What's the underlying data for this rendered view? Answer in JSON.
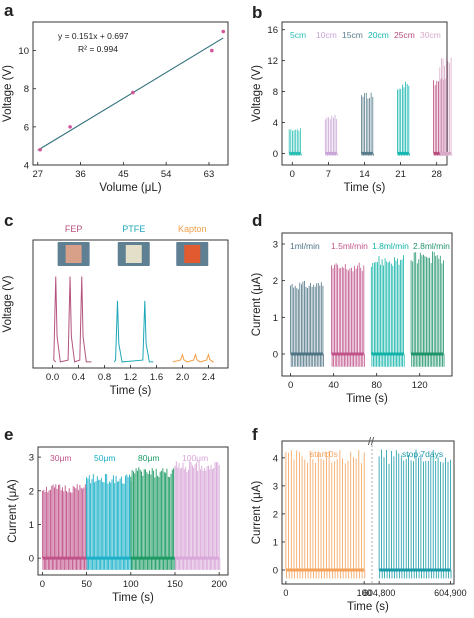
{
  "chart_data": [
    {
      "panel": "a",
      "type": "scatter",
      "xlabel": "Volume (μL)",
      "ylabel": "Voltage (V)",
      "xlim": [
        26,
        67
      ],
      "ylim": [
        4,
        11.5
      ],
      "xticks": [
        27,
        36,
        45,
        54,
        63
      ],
      "yticks": [
        4,
        6,
        8,
        10
      ],
      "x": [
        27.5,
        33.8,
        47,
        63.6,
        66
      ],
      "y": [
        4.8,
        6.0,
        7.8,
        10.0,
        11.0
      ],
      "fit": {
        "slope": 0.151,
        "intercept": 0.697
      },
      "annotation": [
        "y = 0.151x + 0.697",
        "R² = 0.994"
      ]
    },
    {
      "panel": "b",
      "type": "line",
      "xlabel": "Time (s)",
      "ylabel": "Voltage (V)",
      "xlim": [
        -2,
        30
      ],
      "ylim": [
        -1.5,
        17
      ],
      "xticks": [
        0,
        7,
        14,
        21,
        28
      ],
      "yticks": [
        0,
        4,
        8,
        12,
        16
      ],
      "series": [
        {
          "name": "5cm",
          "color": "#2bbfb3",
          "x0": 0.0,
          "x1": 1.8,
          "peak": 3.3
        },
        {
          "name": "10cm",
          "color": "#c9a6d6",
          "x0": 6.4,
          "x1": 8.6,
          "peak": 5.0
        },
        {
          "name": "15cm",
          "color": "#5a7d8c",
          "x0": 12.8,
          "x1": 15.0,
          "peak": 8.0
        },
        {
          "name": "20cm",
          "color": "#16b8b0",
          "x0": 19.2,
          "x1": 21.5,
          "peak": 9.3
        },
        {
          "name": "25cm",
          "color": "#b84d7e",
          "x0": 25.6,
          "x1": 27.7,
          "peak": 10.0
        },
        {
          "name": "30cm",
          "color": "#d9aac9",
          "x0": 32.0,
          "x1": 34.2,
          "peak": 12.5
        }
      ]
    },
    {
      "panel": "c",
      "type": "line",
      "xlabel": "Time (s)",
      "ylabel": "Voltage (V)",
      "xlim": [
        -0.3,
        2.7
      ],
      "ylim": [
        -1,
        20
      ],
      "xticks": [
        0.0,
        0.4,
        0.8,
        1.2,
        1.6,
        2.0,
        2.4
      ],
      "series": [
        {
          "name": "FEP",
          "color": "#b4537f",
          "x0": 0.05,
          "x1": 0.6,
          "peaks": [
            0.05,
            0.27,
            0.45
          ],
          "peak": 14
        },
        {
          "name": "PTFE",
          "color": "#1da7b8",
          "x0": 0.95,
          "x1": 1.55,
          "peaks": [
            1.0,
            1.42
          ],
          "peak": 10
        },
        {
          "name": "Kapton",
          "color": "#f2a04a",
          "x0": 1.85,
          "x1": 2.45,
          "peaks": [
            2.0,
            2.2,
            2.4
          ],
          "peak": 1.2
        }
      ]
    },
    {
      "panel": "d",
      "type": "line",
      "xlabel": "Time (s)",
      "ylabel": "Current (μA)",
      "xlim": [
        -8,
        150
      ],
      "ylim": [
        -0.6,
        3.3
      ],
      "xticks": [
        0,
        40,
        80,
        120
      ],
      "yticks": [
        0,
        1,
        2,
        3
      ],
      "series": [
        {
          "name": "1ml/min",
          "color": "#4f7485",
          "x0": 0,
          "x1": 30,
          "peak": 2.0
        },
        {
          "name": "1.5ml/min",
          "color": "#c0548a",
          "x0": 38,
          "x1": 68,
          "peak": 2.5
        },
        {
          "name": "1.8ml/min",
          "color": "#10b3a8",
          "x0": 75,
          "x1": 105,
          "peak": 2.7
        },
        {
          "name": "2.8ml/min",
          "color": "#21946c",
          "x0": 112,
          "x1": 142,
          "peak": 2.8
        }
      ]
    },
    {
      "panel": "e",
      "type": "line",
      "xlabel": "Time (s)",
      "ylabel": "Current (μA)",
      "xlim": [
        -5,
        210
      ],
      "ylim": [
        -0.5,
        3.3
      ],
      "xticks": [
        0,
        50,
        100,
        150,
        200
      ],
      "yticks": [
        0,
        1,
        2,
        3
      ],
      "series": [
        {
          "name": "30μm",
          "color": "#c0548a",
          "x0": 0,
          "x1": 50,
          "peak": 2.2
        },
        {
          "name": "50μm",
          "color": "#1bb0c8",
          "x0": 50,
          "x1": 100,
          "peak": 2.5
        },
        {
          "name": "80μm",
          "color": "#1e9a64",
          "x0": 100,
          "x1": 150,
          "peak": 2.7
        },
        {
          "name": "100μm",
          "color": "#d9a7d9",
          "x0": 150,
          "x1": 200,
          "peak": 2.9
        }
      ]
    },
    {
      "panel": "f",
      "type": "line",
      "xlabel": "Time (s)",
      "ylabel": "Current (μA)",
      "ylim": [
        -0.5,
        4.6
      ],
      "yticks": [
        0,
        1,
        2,
        3,
        4
      ],
      "xticks_labels": [
        "0",
        "100",
        "604,800",
        "604,900"
      ],
      "series": [
        {
          "name": "start:0s",
          "color": "#f5a25b",
          "x0": 0,
          "x1": 100,
          "peak": 4.3
        },
        {
          "name": "stop:7days",
          "color": "#1a9aa8",
          "x0": 604800,
          "x1": 604900,
          "peak": 4.3
        }
      ]
    }
  ],
  "panel_letters": [
    "a",
    "b",
    "c",
    "d",
    "e",
    "f"
  ],
  "photo_labels": [
    "FEP",
    "PTFE",
    "Kapton"
  ]
}
